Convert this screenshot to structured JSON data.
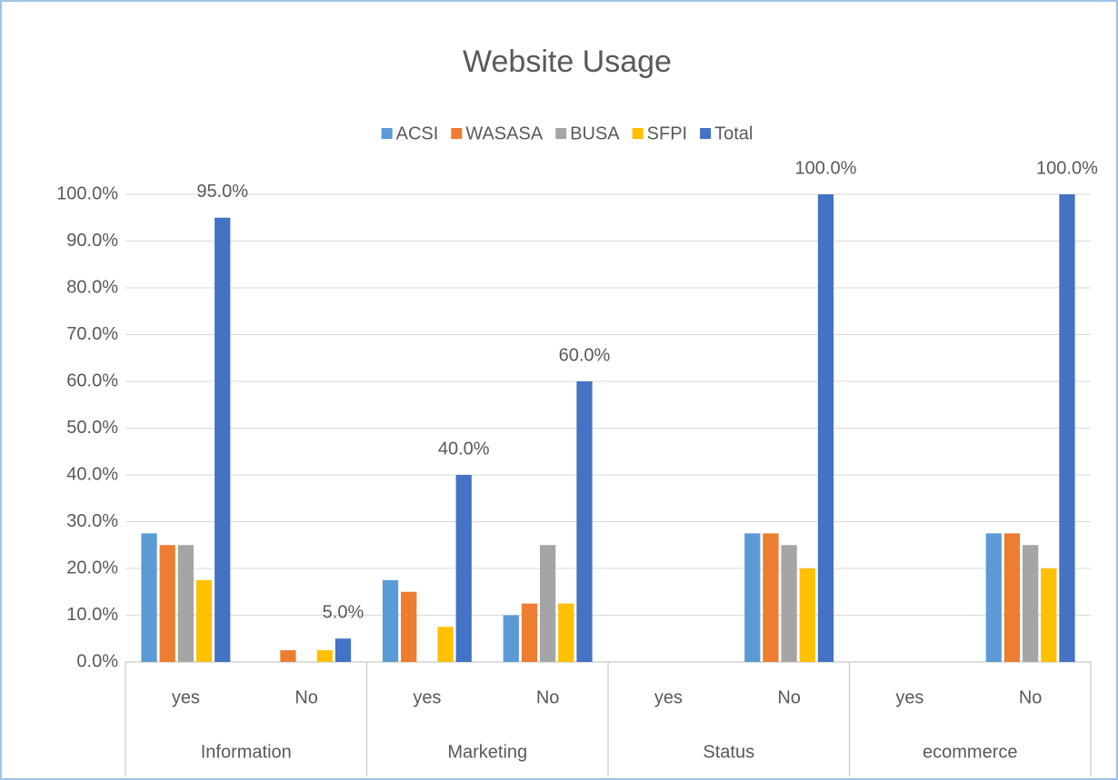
{
  "chart_data": {
    "type": "bar",
    "title": "Website Usage",
    "categories": [
      "yes",
      "No",
      "yes",
      "No",
      "yes",
      "No",
      "yes",
      "No"
    ],
    "category_groups": [
      "Information",
      "Marketing",
      "Status",
      "ecommerce"
    ],
    "series": [
      {
        "name": "ACSI",
        "color": "#5b9bd5",
        "values": [
          27.5,
          0,
          17.5,
          10,
          0,
          27.5,
          0,
          27.5
        ]
      },
      {
        "name": "WASASA",
        "color": "#ed7d31",
        "values": [
          25,
          2.5,
          15,
          12.5,
          0,
          27.5,
          0,
          27.5
        ]
      },
      {
        "name": "BUSA",
        "color": "#a5a5a5",
        "values": [
          25,
          0,
          0,
          25,
          0,
          25,
          0,
          25
        ]
      },
      {
        "name": "SFPI",
        "color": "#ffc000",
        "values": [
          17.5,
          2.5,
          7.5,
          12.5,
          0,
          20,
          0,
          20
        ]
      },
      {
        "name": "Total",
        "color": "#4472c4",
        "values": [
          95,
          5,
          40,
          60,
          0,
          100,
          0,
          100
        ],
        "value_labels": [
          "95.0%",
          "5.0%",
          "40.0%",
          "60.0%",
          null,
          "100.0%",
          null,
          "100.0%"
        ]
      }
    ],
    "ylim": [
      0,
      100
    ],
    "yticks": [
      {
        "value": 0,
        "label": "0.0%"
      },
      {
        "value": 10,
        "label": "10.0%"
      },
      {
        "value": 20,
        "label": "20.0%"
      },
      {
        "value": 30,
        "label": "30.0%"
      },
      {
        "value": 40,
        "label": "40.0%"
      },
      {
        "value": 50,
        "label": "50.0%"
      },
      {
        "value": 60,
        "label": "60.0%"
      },
      {
        "value": 70,
        "label": "70.0%"
      },
      {
        "value": 80,
        "label": "80.0%"
      },
      {
        "value": 90,
        "label": "90.0%"
      },
      {
        "value": 100,
        "label": "100.0%"
      }
    ],
    "grid": true,
    "legend": "top"
  }
}
